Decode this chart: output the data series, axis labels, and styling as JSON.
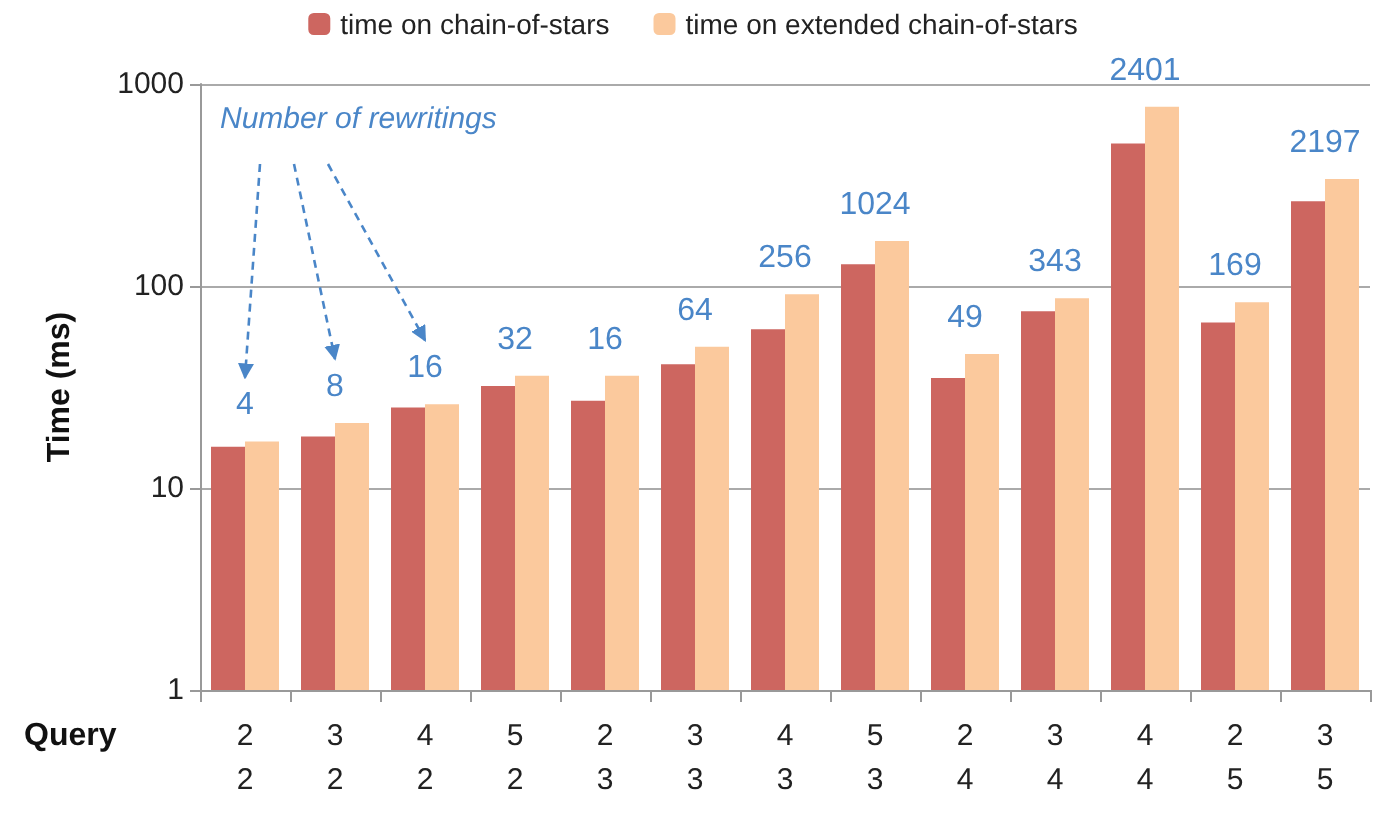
{
  "chart_data": {
    "type": "bar",
    "xlabel": "Query",
    "ylabel": "Time (ms)",
    "categories": [
      "2\n2",
      "3\n2",
      "4\n2",
      "5\n2",
      "2\n3",
      "3\n3",
      "4\n3",
      "5\n3",
      "2\n4",
      "3\n4",
      "4\n4",
      "2\n5",
      "3\n5"
    ],
    "series": [
      {
        "name": "time on chain-of-stars",
        "color": "#cd6660",
        "values": [
          16,
          18,
          25,
          32,
          27,
          41,
          61,
          128,
          35,
          75,
          507,
          66,
          263
        ]
      },
      {
        "name": "time on extended chain-of-stars",
        "color": "#fbc99d",
        "values": [
          17,
          21,
          26,
          36,
          36,
          50,
          91,
          167,
          46,
          87,
          771,
          83,
          339
        ]
      }
    ],
    "annotations": [
      "Number of rewritings",
      "4",
      "8",
      "16",
      "32",
      "16",
      "64",
      "256",
      "1024",
      "49",
      "343",
      "2401",
      "169",
      "2197"
    ],
    "ylim": [
      1,
      1000
    ],
    "yticks": [
      1,
      10,
      100,
      1000
    ],
    "log": true,
    "grid": "y",
    "legend": "top"
  }
}
